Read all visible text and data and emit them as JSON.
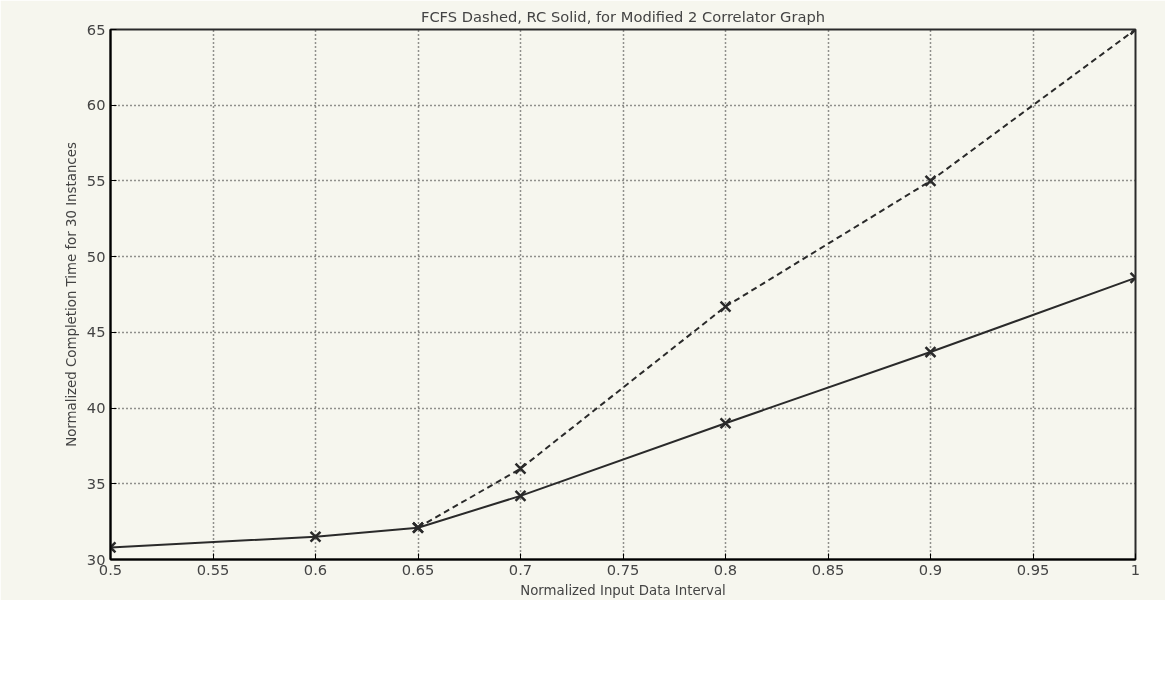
{
  "chart_data": {
    "type": "line",
    "title": "FCFS Dashed, RC Solid, for Modified 2 Correlator Graph",
    "xlabel": "Normalized Input Data Interval",
    "ylabel": "Normalized Completion Time for 30 Instances",
    "x": [
      0.5,
      0.6,
      0.65,
      0.7,
      0.8,
      0.9,
      1
    ],
    "series": [
      {
        "color": "#2a2a2a",
        "line_style": "dashed",
        "x": [
          0.65,
          0.7,
          0.8,
          0.9,
          1
        ],
        "values": [
          32.1,
          36.0,
          46.7,
          55.0,
          65.0
        ]
      },
      {
        "color": "#2a2a2a",
        "line_style": "solid",
        "values": [
          30.8,
          31.5,
          32.1,
          34.2,
          39.0,
          43.7,
          48.6
        ]
      }
    ],
    "marker": "cross",
    "grid": true,
    "xlim": [
      0.5,
      1
    ],
    "ylim": [
      30,
      65
    ],
    "xticks": [
      0.5,
      0.55,
      0.6,
      0.65,
      0.7,
      0.75,
      0.8,
      0.85,
      0.9,
      0.95,
      1
    ],
    "yticks": [
      30,
      35,
      40,
      45,
      50,
      55,
      60,
      65
    ]
  }
}
